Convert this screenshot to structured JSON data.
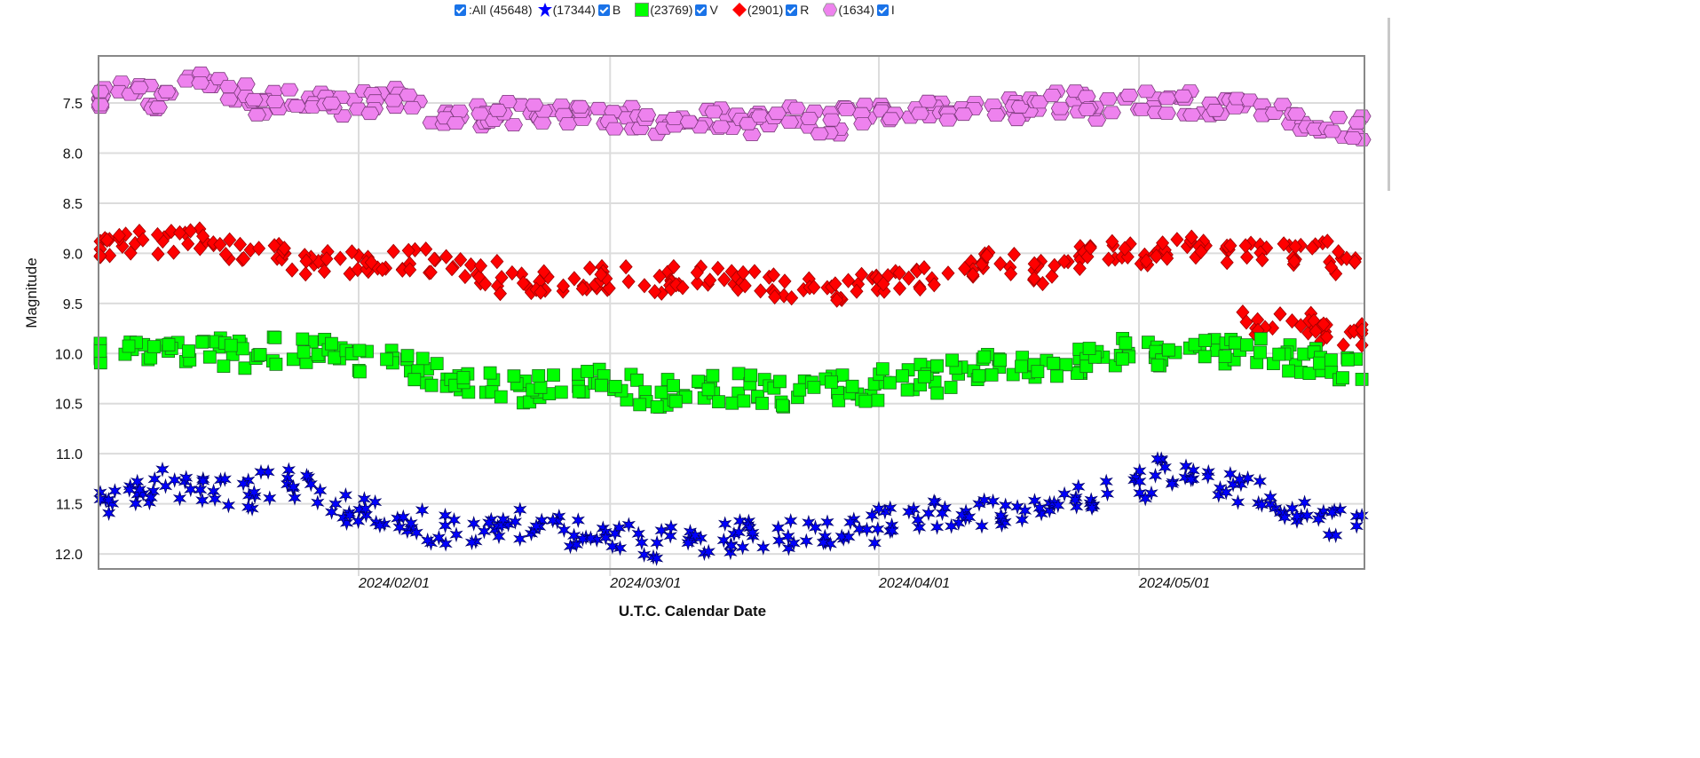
{
  "legend": {
    "all_label": ":All (45648)",
    "items": [
      {
        "band": "B",
        "count": "(17344)",
        "symbol": "star-icon",
        "color": "#0000ff"
      },
      {
        "band": "V",
        "count": "(23769)",
        "symbol": "square-icon",
        "color": "#00ff00"
      },
      {
        "band": "R",
        "count": "(2901)",
        "symbol": "diamond-icon",
        "color": "#ff0000"
      },
      {
        "band": "I",
        "count": "(1634)",
        "symbol": "hexagon-icon",
        "color": "#ee82ee"
      }
    ]
  },
  "chart_data": {
    "type": "scatter",
    "title": "",
    "xlabel": "U.T.C. Calendar Date",
    "ylabel": "Magnitude",
    "x_units": "days since 2023/12/31 (day 1 = 2024/01/01)",
    "xlim": [
      2,
      148
    ],
    "ylim": [
      12.15,
      7.03
    ],
    "y_inverted": true,
    "yticks": [
      "7.5",
      "8.0",
      "8.5",
      "9.0",
      "9.5",
      "10.0",
      "10.5",
      "11.0",
      "11.5",
      "12.0"
    ],
    "xticks": [
      {
        "day": 32,
        "label": "2024/02/01"
      },
      {
        "day": 61,
        "label": "2024/03/01"
      },
      {
        "day": 92,
        "label": "2024/04/01"
      },
      {
        "day": 122,
        "label": "2024/05/01"
      }
    ],
    "grid": true,
    "legend_position": "top",
    "series": [
      {
        "name": "I",
        "color": "#ee82ee",
        "stroke": "#7a3a7a",
        "marker": "hexagon",
        "spread": 0.12,
        "points": [
          [
            2,
            7.45
          ],
          [
            6,
            7.4
          ],
          [
            10,
            7.45
          ],
          [
            14,
            7.3
          ],
          [
            18,
            7.4
          ],
          [
            22,
            7.5
          ],
          [
            26,
            7.45
          ],
          [
            30,
            7.55
          ],
          [
            34,
            7.5
          ],
          [
            38,
            7.45
          ],
          [
            42,
            7.6
          ],
          [
            46,
            7.62
          ],
          [
            50,
            7.6
          ],
          [
            54,
            7.6
          ],
          [
            58,
            7.65
          ],
          [
            62,
            7.65
          ],
          [
            66,
            7.7
          ],
          [
            70,
            7.68
          ],
          [
            74,
            7.65
          ],
          [
            78,
            7.7
          ],
          [
            82,
            7.65
          ],
          [
            86,
            7.7
          ],
          [
            90,
            7.6
          ],
          [
            94,
            7.6
          ],
          [
            98,
            7.55
          ],
          [
            102,
            7.6
          ],
          [
            106,
            7.55
          ],
          [
            110,
            7.55
          ],
          [
            114,
            7.5
          ],
          [
            118,
            7.55
          ],
          [
            122,
            7.5
          ],
          [
            126,
            7.5
          ],
          [
            130,
            7.55
          ],
          [
            134,
            7.55
          ],
          [
            138,
            7.6
          ],
          [
            142,
            7.7
          ],
          [
            146,
            7.75
          ]
        ]
      },
      {
        "name": "R",
        "color": "#ff0000",
        "stroke": "#a00000",
        "marker": "diamond",
        "spread": 0.12,
        "points": [
          [
            2,
            8.95
          ],
          [
            6,
            8.9
          ],
          [
            10,
            8.9
          ],
          [
            14,
            8.85
          ],
          [
            18,
            8.95
          ],
          [
            22,
            9.0
          ],
          [
            26,
            9.1
          ],
          [
            30,
            9.1
          ],
          [
            34,
            9.15
          ],
          [
            38,
            9.05
          ],
          [
            42,
            9.1
          ],
          [
            46,
            9.2
          ],
          [
            50,
            9.3
          ],
          [
            54,
            9.3
          ],
          [
            58,
            9.25
          ],
          [
            62,
            9.25
          ],
          [
            66,
            9.3
          ],
          [
            70,
            9.25
          ],
          [
            74,
            9.25
          ],
          [
            78,
            9.3
          ],
          [
            82,
            9.35
          ],
          [
            86,
            9.4
          ],
          [
            90,
            9.3
          ],
          [
            94,
            9.3
          ],
          [
            98,
            9.25
          ],
          [
            102,
            9.15
          ],
          [
            106,
            9.1
          ],
          [
            110,
            9.2
          ],
          [
            114,
            9.05
          ],
          [
            118,
            9.0
          ],
          [
            122,
            9.0
          ],
          [
            126,
            8.95
          ],
          [
            130,
            8.95
          ],
          [
            134,
            9.0
          ],
          [
            138,
            9.0
          ],
          [
            142,
            9.0
          ],
          [
            146,
            9.1
          ],
          [
            136,
            9.7
          ],
          [
            140,
            9.72
          ],
          [
            144,
            9.78
          ],
          [
            147,
            9.8
          ]
        ]
      },
      {
        "name": "V",
        "color": "#00ff00",
        "stroke": "#1d6b1d",
        "marker": "square",
        "spread": 0.15,
        "points": [
          [
            2,
            10.0
          ],
          [
            6,
            10.0
          ],
          [
            10,
            9.95
          ],
          [
            14,
            9.95
          ],
          [
            18,
            10.0
          ],
          [
            22,
            9.98
          ],
          [
            26,
            10.0
          ],
          [
            30,
            10.05
          ],
          [
            34,
            10.1
          ],
          [
            38,
            10.15
          ],
          [
            42,
            10.25
          ],
          [
            46,
            10.3
          ],
          [
            50,
            10.35
          ],
          [
            54,
            10.35
          ],
          [
            58,
            10.3
          ],
          [
            62,
            10.35
          ],
          [
            66,
            10.4
          ],
          [
            70,
            10.35
          ],
          [
            74,
            10.35
          ],
          [
            78,
            10.35
          ],
          [
            82,
            10.4
          ],
          [
            86,
            10.35
          ],
          [
            90,
            10.35
          ],
          [
            94,
            10.3
          ],
          [
            98,
            10.25
          ],
          [
            102,
            10.2
          ],
          [
            106,
            10.15
          ],
          [
            110,
            10.1
          ],
          [
            114,
            10.1
          ],
          [
            118,
            10.05
          ],
          [
            122,
            10.0
          ],
          [
            126,
            10.0
          ],
          [
            130,
            10.0
          ],
          [
            134,
            10.0
          ],
          [
            138,
            10.05
          ],
          [
            142,
            10.1
          ],
          [
            146,
            10.15
          ]
        ]
      },
      {
        "name": "B",
        "color": "#0000ff",
        "stroke": "#00006b",
        "marker": "star",
        "spread": 0.15,
        "points": [
          [
            2,
            11.45
          ],
          [
            6,
            11.4
          ],
          [
            10,
            11.3
          ],
          [
            14,
            11.35
          ],
          [
            18,
            11.4
          ],
          [
            22,
            11.3
          ],
          [
            26,
            11.35
          ],
          [
            30,
            11.55
          ],
          [
            34,
            11.6
          ],
          [
            38,
            11.65
          ],
          [
            42,
            11.75
          ],
          [
            46,
            11.75
          ],
          [
            50,
            11.7
          ],
          [
            54,
            11.7
          ],
          [
            58,
            11.8
          ],
          [
            62,
            11.8
          ],
          [
            66,
            11.9
          ],
          [
            70,
            11.85
          ],
          [
            74,
            11.85
          ],
          [
            78,
            11.8
          ],
          [
            82,
            11.8
          ],
          [
            86,
            11.8
          ],
          [
            90,
            11.75
          ],
          [
            94,
            11.65
          ],
          [
            98,
            11.6
          ],
          [
            102,
            11.6
          ],
          [
            106,
            11.6
          ],
          [
            110,
            11.55
          ],
          [
            114,
            11.4
          ],
          [
            118,
            11.4
          ],
          [
            122,
            11.3
          ],
          [
            126,
            11.2
          ],
          [
            130,
            11.3
          ],
          [
            134,
            11.35
          ],
          [
            138,
            11.5
          ],
          [
            142,
            11.6
          ],
          [
            146,
            11.7
          ]
        ]
      }
    ]
  }
}
